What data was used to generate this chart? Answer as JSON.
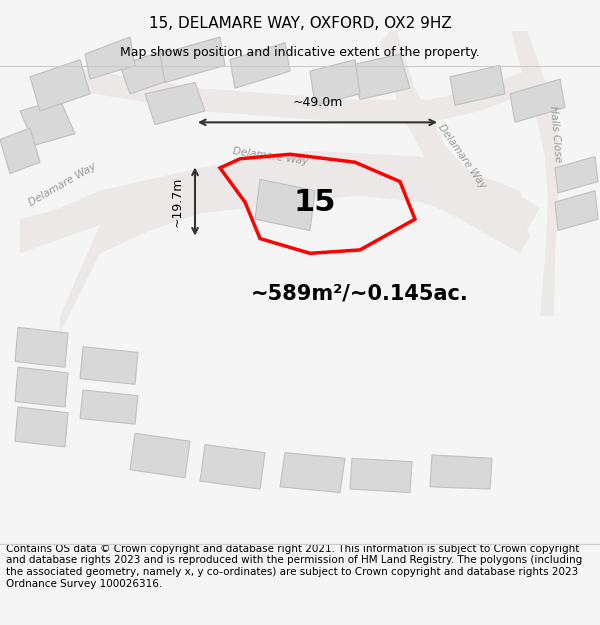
{
  "title": "15, DELAMARE WAY, OXFORD, OX2 9HZ",
  "subtitle": "Map shows position and indicative extent of the property.",
  "footer": "Contains OS data © Crown copyright and database right 2021. This information is subject to Crown copyright and database rights 2023 and is reproduced with the permission of HM Land Registry. The polygons (including the associated geometry, namely x, y co-ordinates) are subject to Crown copyright and database rights 2023 Ordnance Survey 100026316.",
  "area_text": "~589m²/~0.145ac.",
  "number_label": "15",
  "dim_width": "~49.0m",
  "dim_height": "~19.7m",
  "road_label_1": "Delamare Way",
  "road_label_2": "Delamare Way",
  "road_label_3": "Halls Close",
  "bg_color": "#f5f5f5",
  "map_bg": "#ffffff",
  "road_color": "#e8b8b8",
  "road_fill": "#f0e8e8",
  "building_color": "#d0d0d0",
  "building_edge": "#c0c0c0",
  "property_color": "#ff0000",
  "property_fill": "none",
  "dim_line_color": "#333333",
  "text_color": "#000000",
  "title_fontsize": 11,
  "subtitle_fontsize": 9,
  "footer_fontsize": 7.5
}
